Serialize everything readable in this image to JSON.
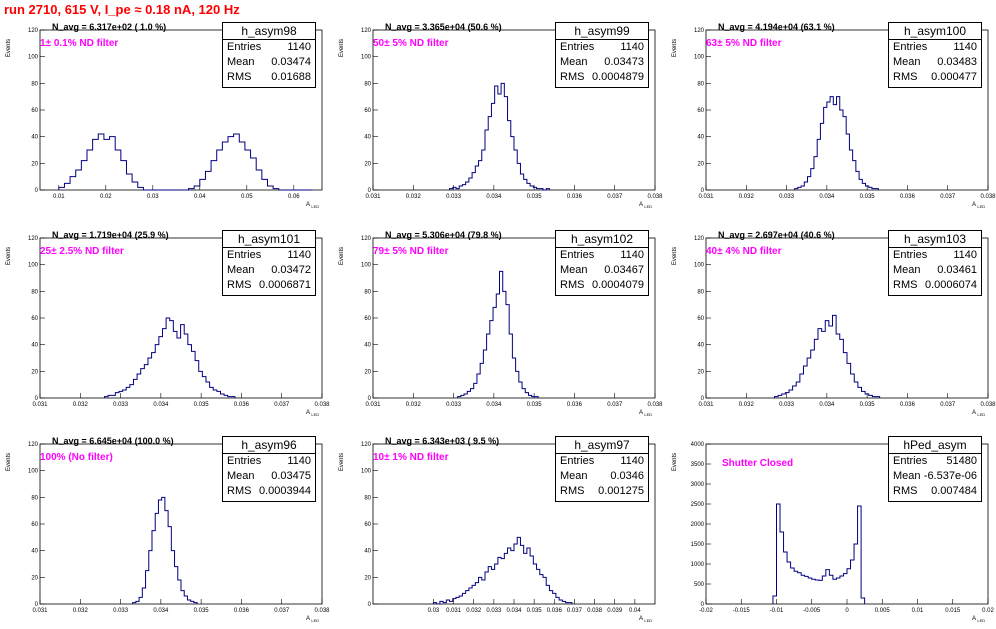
{
  "page": {
    "title": "run 2710,   615 V, I_pe ≈ 0.18 nA, 120 Hz"
  },
  "panels": [
    {
      "id": "h_asym98",
      "stats": {
        "title": "h_asym98",
        "entries": "1140",
        "mean": "0.03474",
        "rms": "0.01688"
      },
      "navg": "N_avg = 6.317e+02 ( 1.0 %)",
      "filter": "1± 0.1% ND filter"
    },
    {
      "id": "h_asym99",
      "stats": {
        "title": "h_asym99",
        "entries": "1140",
        "mean": "0.03473",
        "rms": "0.0004879"
      },
      "navg": "N_avg = 3.365e+04 (50.6 %)",
      "filter": "50± 5% ND filter"
    },
    {
      "id": "h_asym100",
      "stats": {
        "title": "h_asym100",
        "entries": "1140",
        "mean": "0.03483",
        "rms": "0.000477"
      },
      "navg": "N_avg = 4.194e+04 (63.1 %)",
      "filter": "63± 5% ND filter"
    },
    {
      "id": "h_asym101",
      "stats": {
        "title": "h_asym101",
        "entries": "1140",
        "mean": "0.03472",
        "rms": "0.0006871"
      },
      "navg": "N_avg = 1.719e+04 (25.9 %)",
      "filter": "25± 2.5% ND filter"
    },
    {
      "id": "h_asym102",
      "stats": {
        "title": "h_asym102",
        "entries": "1140",
        "mean": "0.03467",
        "rms": "0.0004079"
      },
      "navg": "N_avg = 5.306e+04 (79.8 %)",
      "filter": "79± 5% ND filter"
    },
    {
      "id": "h_asym103",
      "stats": {
        "title": "h_asym103",
        "entries": "1140",
        "mean": "0.03461",
        "rms": "0.0006074"
      },
      "navg": "N_avg = 2.697e+04 (40.6 %)",
      "filter": "40± 4% ND filter"
    },
    {
      "id": "h_asym96",
      "stats": {
        "title": "h_asym96",
        "entries": "1140",
        "mean": "0.03475",
        "rms": "0.0003944"
      },
      "navg": "N_avg = 6.645e+04 (100.0 %)",
      "filter": "100% (No filter)"
    },
    {
      "id": "h_asym97",
      "stats": {
        "title": "h_asym97",
        "entries": "1140",
        "mean": "0.0346",
        "rms": "0.001275"
      },
      "navg": "N_avg = 6.343e+03 ( 9.5 %)",
      "filter": "10± 1% ND filter"
    },
    {
      "id": "hPed_asym",
      "stats": {
        "title": "hPed_asym",
        "entries": "51480",
        "mean": "-6.537e-06",
        "rms": "0.007484"
      },
      "navg": "",
      "filter": "Shutter Closed"
    }
  ],
  "labels": {
    "ylabel": "Events",
    "xlabel": "A",
    "xlabel_sub": "LED",
    "entries_label": "Entries",
    "mean_label": "Mean",
    "rms_label": "RMS"
  },
  "chart_data": [
    {
      "type": "bar",
      "title": "h_asym98",
      "xlabel": "A LED",
      "ylabel": "Events",
      "xlim": [
        0.006,
        0.066
      ],
      "ylim": [
        0,
        120
      ],
      "x_ticks": [
        "0.01",
        "0.02",
        "0.03",
        "0.04",
        "0.05",
        "0.06"
      ],
      "y_ticks": [
        "0",
        "20",
        "40",
        "60",
        "80",
        "100",
        "120"
      ],
      "color": "#00007f",
      "bin_start": 0.01,
      "bin_width": 0.0012,
      "values": [
        2,
        5,
        10,
        15,
        22,
        30,
        38,
        42,
        38,
        40,
        30,
        22,
        12,
        6,
        2,
        0,
        0,
        0,
        0,
        0,
        0,
        0,
        0,
        1,
        3,
        8,
        14,
        22,
        30,
        36,
        40,
        42,
        36,
        30,
        24,
        15,
        8,
        3,
        1,
        0,
        0,
        0,
        0,
        0,
        0
      ]
    },
    {
      "type": "bar",
      "title": "h_asym99",
      "xlabel": "A LED",
      "ylabel": "Events",
      "xlim": [
        0.031,
        0.038
      ],
      "ylim": [
        0,
        120
      ],
      "x_ticks": [
        "0.031",
        "0.032",
        "0.033",
        "0.034",
        "0.035",
        "0.036",
        "0.037",
        "0.038"
      ],
      "y_ticks": [
        "0",
        "20",
        "40",
        "60",
        "80",
        "100",
        "120"
      ],
      "color": "#00007f",
      "bin_start": 0.0329,
      "bin_width": 8e-05,
      "values": [
        1,
        2,
        1,
        3,
        4,
        6,
        9,
        13,
        18,
        22,
        30,
        45,
        55,
        65,
        78,
        72,
        80,
        70,
        52,
        40,
        30,
        20,
        12,
        8,
        5,
        3,
        2,
        1,
        1,
        0,
        1
      ]
    },
    {
      "type": "bar",
      "title": "h_asym100",
      "xlabel": "A LED",
      "ylabel": "Events",
      "xlim": [
        0.031,
        0.038
      ],
      "ylim": [
        0,
        120
      ],
      "x_ticks": [
        "0.031",
        "0.032",
        "0.033",
        "0.034",
        "0.035",
        "0.036",
        "0.037",
        "0.038"
      ],
      "y_ticks": [
        "0",
        "20",
        "40",
        "60",
        "80",
        "100",
        "120"
      ],
      "color": "#00007f",
      "bin_start": 0.0332,
      "bin_width": 8e-05,
      "values": [
        1,
        2,
        3,
        6,
        10,
        16,
        25,
        38,
        50,
        62,
        66,
        70,
        64,
        70,
        60,
        55,
        42,
        30,
        22,
        14,
        8,
        5,
        3,
        2,
        1,
        1
      ]
    },
    {
      "type": "bar",
      "title": "h_asym101",
      "xlabel": "A LED",
      "ylabel": "Events",
      "xlim": [
        0.031,
        0.038
      ],
      "ylim": [
        0,
        120
      ],
      "x_ticks": [
        "0.031",
        "0.032",
        "0.033",
        "0.034",
        "0.035",
        "0.036",
        "0.037",
        "0.038"
      ],
      "y_ticks": [
        "0",
        "20",
        "40",
        "60",
        "80",
        "100",
        "120"
      ],
      "color": "#00007f",
      "bin_start": 0.0326,
      "bin_width": 9e-05,
      "values": [
        1,
        2,
        2,
        4,
        5,
        6,
        8,
        10,
        14,
        18,
        22,
        25,
        30,
        34,
        40,
        46,
        52,
        60,
        58,
        50,
        45,
        55,
        48,
        40,
        35,
        28,
        20,
        16,
        12,
        8,
        6,
        5,
        3,
        2,
        1,
        1
      ]
    },
    {
      "type": "bar",
      "title": "h_asym102",
      "xlabel": "A LED",
      "ylabel": "Events",
      "xlim": [
        0.031,
        0.038
      ],
      "ylim": [
        0,
        120
      ],
      "x_ticks": [
        "0.031",
        "0.032",
        "0.033",
        "0.034",
        "0.035",
        "0.036",
        "0.037",
        "0.038"
      ],
      "y_ticks": [
        "0",
        "20",
        "40",
        "60",
        "80",
        "100",
        "120"
      ],
      "color": "#00007f",
      "bin_start": 0.0331,
      "bin_width": 8e-05,
      "values": [
        1,
        2,
        3,
        5,
        7,
        11,
        18,
        26,
        36,
        48,
        58,
        68,
        78,
        95,
        80,
        70,
        48,
        30,
        20,
        12,
        7,
        4,
        2,
        1,
        1
      ]
    },
    {
      "type": "bar",
      "title": "h_asym103",
      "xlabel": "A LED",
      "ylabel": "Events",
      "xlim": [
        0.031,
        0.038
      ],
      "ylim": [
        0,
        120
      ],
      "x_ticks": [
        "0.031",
        "0.032",
        "0.033",
        "0.034",
        "0.035",
        "0.036",
        "0.037",
        "0.038"
      ],
      "y_ticks": [
        "0",
        "20",
        "40",
        "60",
        "80",
        "100",
        "120"
      ],
      "color": "#00007f",
      "bin_start": 0.0327,
      "bin_width": 9e-05,
      "values": [
        1,
        2,
        3,
        4,
        6,
        9,
        12,
        18,
        24,
        30,
        36,
        44,
        52,
        50,
        58,
        54,
        62,
        48,
        44,
        34,
        26,
        18,
        12,
        8,
        5,
        3,
        2,
        1,
        1
      ]
    },
    {
      "type": "bar",
      "title": "h_asym96",
      "xlabel": "A LED",
      "ylabel": "Events",
      "xlim": [
        0.031,
        0.038
      ],
      "ylim": [
        0,
        120
      ],
      "x_ticks": [
        "0.031",
        "0.032",
        "0.033",
        "0.034",
        "0.035",
        "0.036",
        "0.037",
        "0.038"
      ],
      "y_ticks": [
        "0",
        "20",
        "40",
        "60",
        "80",
        "100",
        "120"
      ],
      "color": "#00007f",
      "bin_start": 0.0333,
      "bin_width": 8e-05,
      "values": [
        1,
        2,
        5,
        12,
        25,
        40,
        55,
        68,
        78,
        80,
        70,
        58,
        40,
        28,
        18,
        10,
        6,
        3,
        2,
        1
      ]
    },
    {
      "type": "bar",
      "title": "h_asym97",
      "xlabel": "A LED",
      "ylabel": "Events",
      "xlim": [
        0.027,
        0.041
      ],
      "ylim": [
        0,
        120
      ],
      "x_ticks": [
        "0.03",
        "0.031",
        "0.032",
        "0.033",
        "0.034",
        "0.035",
        "0.036",
        "0.037",
        "0.038",
        "0.039",
        "0.04"
      ],
      "y_ticks": [
        "0",
        "20",
        "40",
        "60",
        "80",
        "100",
        "120"
      ],
      "color": "#00007f",
      "bin_start": 0.03,
      "bin_width": 0.00016,
      "values": [
        1,
        0,
        2,
        1,
        3,
        2,
        4,
        5,
        6,
        8,
        10,
        12,
        14,
        16,
        20,
        18,
        24,
        28,
        26,
        30,
        35,
        34,
        38,
        42,
        40,
        45,
        50,
        44,
        38,
        42,
        36,
        30,
        26,
        22,
        20,
        14,
        10,
        8,
        5,
        3,
        2,
        1,
        1
      ]
    },
    {
      "type": "bar",
      "title": "hPed_asym",
      "xlabel": "A LED",
      "ylabel": "Events",
      "xlim": [
        -0.02,
        0.02
      ],
      "ylim": [
        0,
        4000
      ],
      "x_ticks": [
        "-0.02",
        "-0.015",
        "-0.01",
        "-0.005",
        "0",
        "0.005",
        "0.01",
        "0.015",
        "0.02"
      ],
      "y_ticks": [
        "0",
        "500",
        "1000",
        "1500",
        "2000",
        "2500",
        "3000",
        "3500",
        "4000"
      ],
      "color": "#00007f",
      "bin_start": -0.0105,
      "bin_width": 0.0005,
      "values": [
        200,
        2500,
        1800,
        1300,
        1050,
        900,
        820,
        780,
        720,
        690,
        650,
        620,
        600,
        590,
        700,
        860,
        720,
        620,
        650,
        700,
        760,
        880,
        1100,
        1500,
        2450,
        150
      ]
    }
  ]
}
